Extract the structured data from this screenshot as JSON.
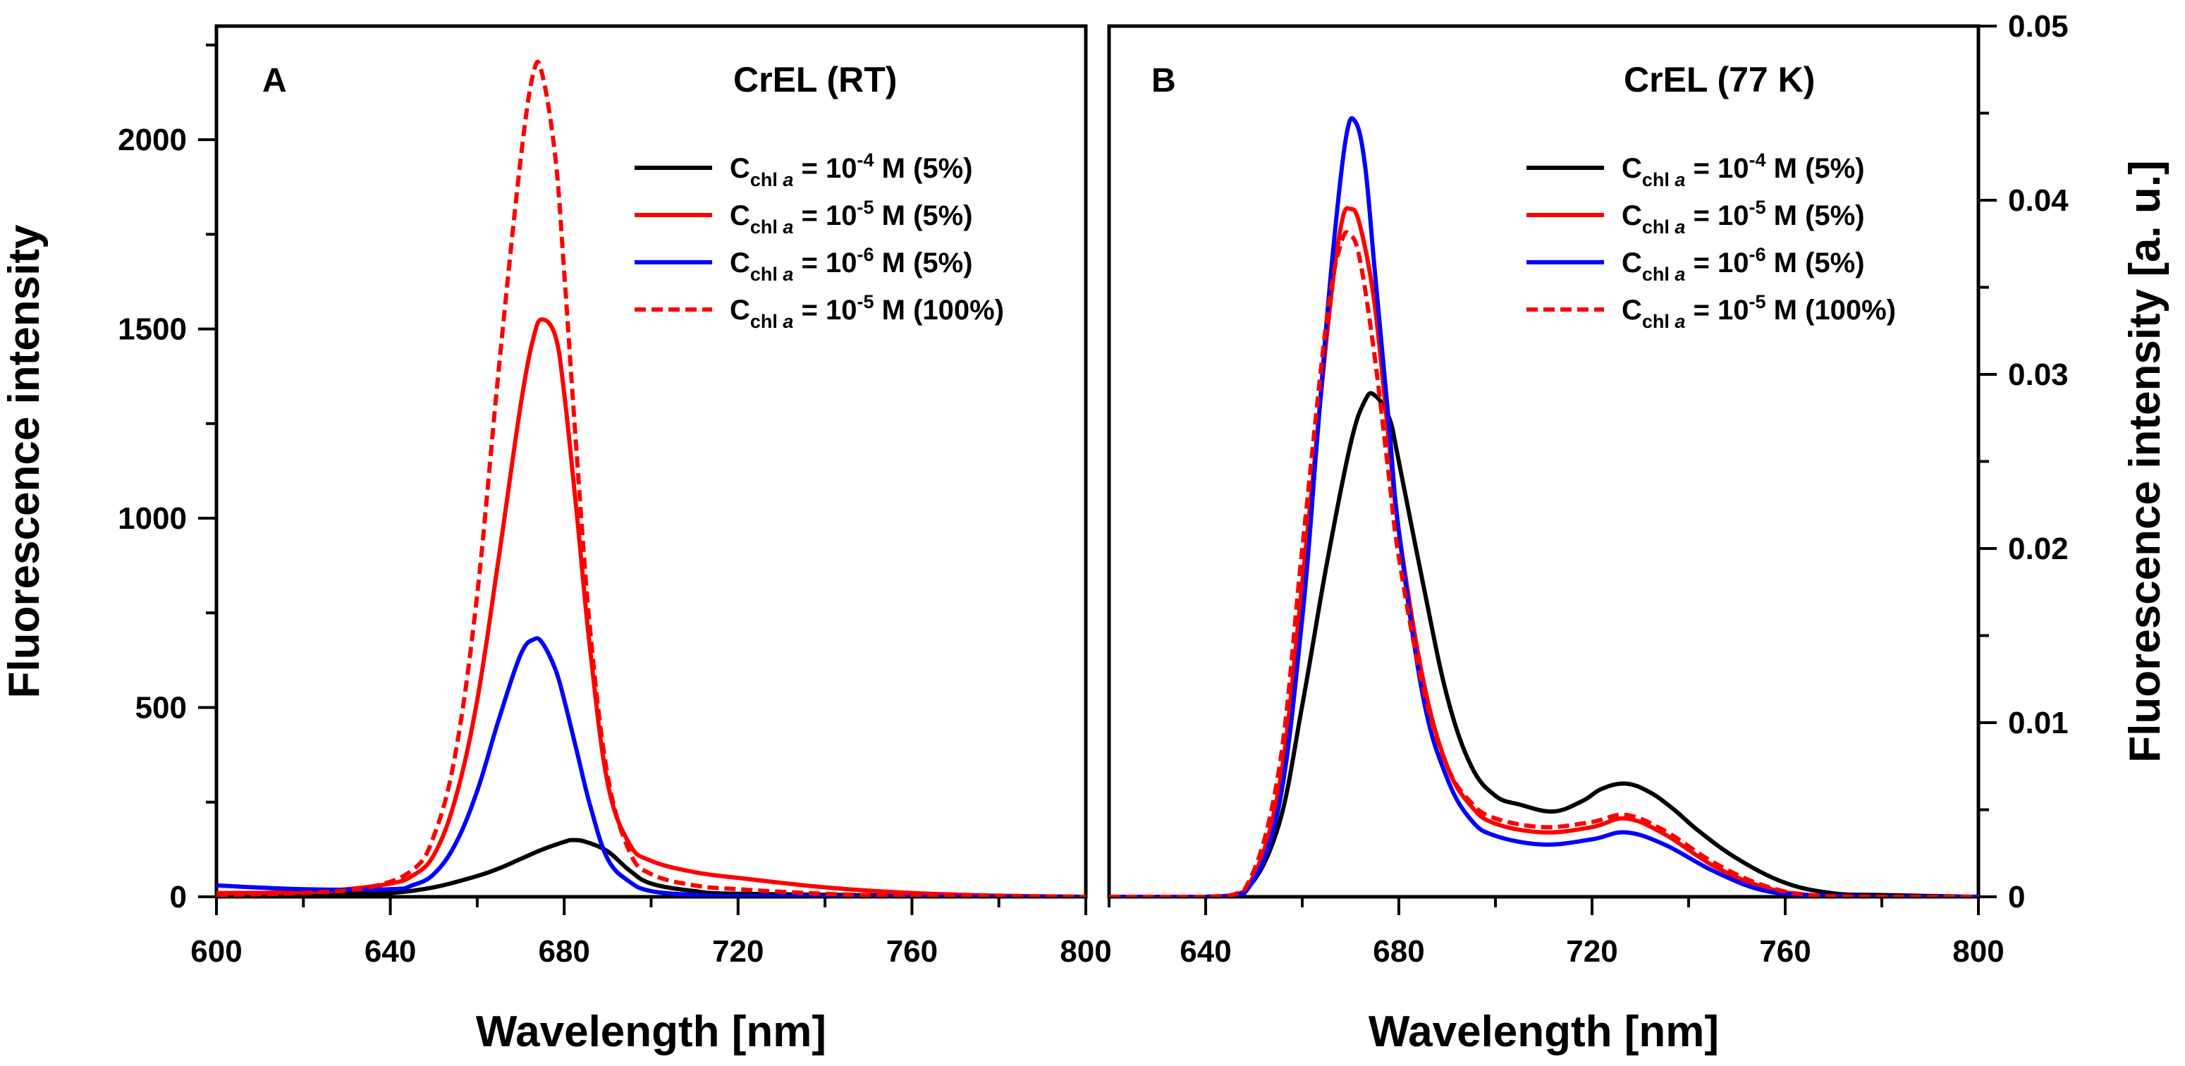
{
  "chart_data": [
    {
      "panel": "A",
      "type": "line",
      "title": "CrEL (RT)",
      "xlabel": "Wavelength [nm]",
      "ylabel": "Fluorescence intensity",
      "xlim": [
        600,
        800
      ],
      "ylim": [
        0,
        2300
      ],
      "xticks": [
        "600",
        "640",
        "680",
        "720",
        "760",
        "800"
      ],
      "yticks": [
        "0",
        "500",
        "1000",
        "1500",
        "2000"
      ],
      "legend_position": "top-right",
      "series": [
        {
          "label": {
            "base": "C",
            "sub": "chl a",
            "mid": " = 10",
            "sup": "-4",
            "tail": " M (5%)"
          },
          "color": "#000000",
          "dash": "solid",
          "x": [
            600,
            630,
            640,
            650,
            660,
            665,
            670,
            675,
            680,
            682,
            685,
            690,
            695,
            700,
            710,
            720,
            760,
            800
          ],
          "y": [
            8,
            8,
            10,
            25,
            55,
            75,
            100,
            125,
            145,
            150,
            145,
            120,
            70,
            35,
            15,
            8,
            3,
            0
          ]
        },
        {
          "label": {
            "base": "C",
            "sub": "chl a",
            "mid": " = 10",
            "sup": "-5",
            "tail": " M (5%)"
          },
          "color": "#ff0000",
          "dash": "solid",
          "x": [
            600,
            620,
            630,
            640,
            645,
            650,
            655,
            660,
            665,
            670,
            673,
            675,
            678,
            680,
            683,
            686,
            690,
            695,
            700,
            710,
            720,
            740,
            760,
            780,
            800
          ],
          "y": [
            10,
            12,
            20,
            35,
            55,
            110,
            260,
            520,
            900,
            1300,
            1480,
            1525,
            1480,
            1330,
            1000,
            650,
            300,
            140,
            95,
            65,
            50,
            25,
            10,
            3,
            0
          ]
        },
        {
          "label": {
            "base": "C",
            "sub": "chl a",
            "mid": " = 10",
            "sup": "-6",
            "tail": " M (5%)"
          },
          "color": "#0000ff",
          "dash": "solid",
          "x": [
            600,
            620,
            640,
            645,
            650,
            655,
            660,
            665,
            670,
            673,
            675,
            678,
            680,
            683,
            686,
            690,
            695,
            700,
            710,
            720,
            760,
            800
          ],
          "y": [
            30,
            20,
            20,
            30,
            60,
            140,
            280,
            470,
            640,
            680,
            670,
            600,
            520,
            380,
            240,
            100,
            40,
            15,
            5,
            2,
            0,
            0
          ]
        },
        {
          "label": {
            "base": "C",
            "sub": "chl a",
            "mid": " = 10",
            "sup": "-5",
            "tail": " M (100%)"
          },
          "color": "#ff0000",
          "dash": "dashed",
          "x": [
            600,
            620,
            635,
            645,
            650,
            655,
            660,
            665,
            670,
            673,
            675,
            678,
            680,
            683,
            686,
            690,
            695,
            700,
            710,
            720,
            740,
            760,
            800
          ],
          "y": [
            5,
            10,
            25,
            70,
            160,
            380,
            800,
            1400,
            1950,
            2180,
            2170,
            1950,
            1650,
            1150,
            700,
            320,
            120,
            60,
            30,
            20,
            8,
            3,
            0
          ]
        }
      ]
    },
    {
      "panel": "B",
      "type": "line",
      "title": "CrEL (77 K)",
      "xlabel": "Wavelength [nm]",
      "ylabel": "Fluorescence intensity [a. u.]",
      "xlim": [
        620,
        800
      ],
      "ylim": [
        0,
        0.05
      ],
      "xticks": [
        "640",
        "680",
        "720",
        "760",
        "800"
      ],
      "yticks": [
        "0",
        "0.01",
        "0.02",
        "0.03",
        "0.04",
        "0.05"
      ],
      "legend_position": "top-right",
      "series": [
        {
          "label": {
            "base": "C",
            "sub": "chl a",
            "mid": " = 10",
            "sup": "-4",
            "tail": " M (5%)"
          },
          "color": "#000000",
          "dash": "solid",
          "x": [
            620,
            640,
            648,
            655,
            660,
            665,
            670,
            673,
            675,
            678,
            680,
            685,
            690,
            695,
            700,
            705,
            712,
            718,
            722,
            727,
            732,
            737,
            742,
            750,
            760,
            770,
            780,
            800
          ],
          "y": [
            0,
            0,
            0.0003,
            0.004,
            0.011,
            0.019,
            0.026,
            0.0285,
            0.0288,
            0.0275,
            0.025,
            0.018,
            0.0115,
            0.0075,
            0.0058,
            0.0053,
            0.0049,
            0.0055,
            0.0062,
            0.0065,
            0.006,
            0.005,
            0.0038,
            0.0022,
            0.0008,
            0.0002,
            0.0001,
            0
          ]
        },
        {
          "label": {
            "base": "C",
            "sub": "chl a",
            "mid": " = 10",
            "sup": "-5",
            "tail": " M (5%)"
          },
          "color": "#ff0000",
          "dash": "solid",
          "x": [
            620,
            640,
            648,
            655,
            660,
            665,
            668,
            670,
            672,
            675,
            678,
            680,
            685,
            690,
            695,
            700,
            710,
            720,
            727,
            735,
            745,
            755,
            765,
            780,
            800
          ],
          "y": [
            0,
            0,
            0.0003,
            0.006,
            0.018,
            0.032,
            0.0385,
            0.0395,
            0.0385,
            0.034,
            0.026,
            0.021,
            0.0125,
            0.0075,
            0.0052,
            0.0042,
            0.0037,
            0.004,
            0.0045,
            0.0036,
            0.0018,
            0.0006,
            0.0001,
            0,
            0
          ]
        },
        {
          "label": {
            "base": "C",
            "sub": "chl a",
            "mid": " = 10",
            "sup": "-6",
            "tail": " M (5%)"
          },
          "color": "#0000ff",
          "dash": "solid",
          "x": [
            620,
            640,
            648,
            655,
            660,
            663,
            666,
            669,
            671,
            673,
            675,
            678,
            680,
            685,
            690,
            695,
            700,
            710,
            720,
            727,
            735,
            745,
            755,
            765,
            780,
            800
          ],
          "y": [
            0,
            0,
            0.0002,
            0.005,
            0.016,
            0.026,
            0.036,
            0.0435,
            0.0445,
            0.042,
            0.036,
            0.027,
            0.021,
            0.0115,
            0.0068,
            0.0044,
            0.0035,
            0.003,
            0.0033,
            0.0037,
            0.003,
            0.0015,
            0.0004,
            0.0001,
            0,
            0
          ]
        },
        {
          "label": {
            "base": "C",
            "sub": "chl a",
            "mid": " = 10",
            "sup": "-5",
            "tail": " M (100%)"
          },
          "color": "#ff0000",
          "dash": "dashed",
          "x": [
            620,
            640,
            648,
            655,
            660,
            665,
            668,
            670,
            672,
            675,
            678,
            680,
            685,
            690,
            695,
            700,
            710,
            720,
            727,
            735,
            745,
            755,
            765,
            780,
            800
          ],
          "y": [
            0,
            0,
            0.0004,
            0.007,
            0.02,
            0.033,
            0.0375,
            0.038,
            0.0365,
            0.031,
            0.024,
            0.0195,
            0.012,
            0.0075,
            0.0054,
            0.0045,
            0.004,
            0.0043,
            0.0047,
            0.0038,
            0.002,
            0.0007,
            0.0001,
            0,
            0
          ]
        }
      ]
    }
  ]
}
